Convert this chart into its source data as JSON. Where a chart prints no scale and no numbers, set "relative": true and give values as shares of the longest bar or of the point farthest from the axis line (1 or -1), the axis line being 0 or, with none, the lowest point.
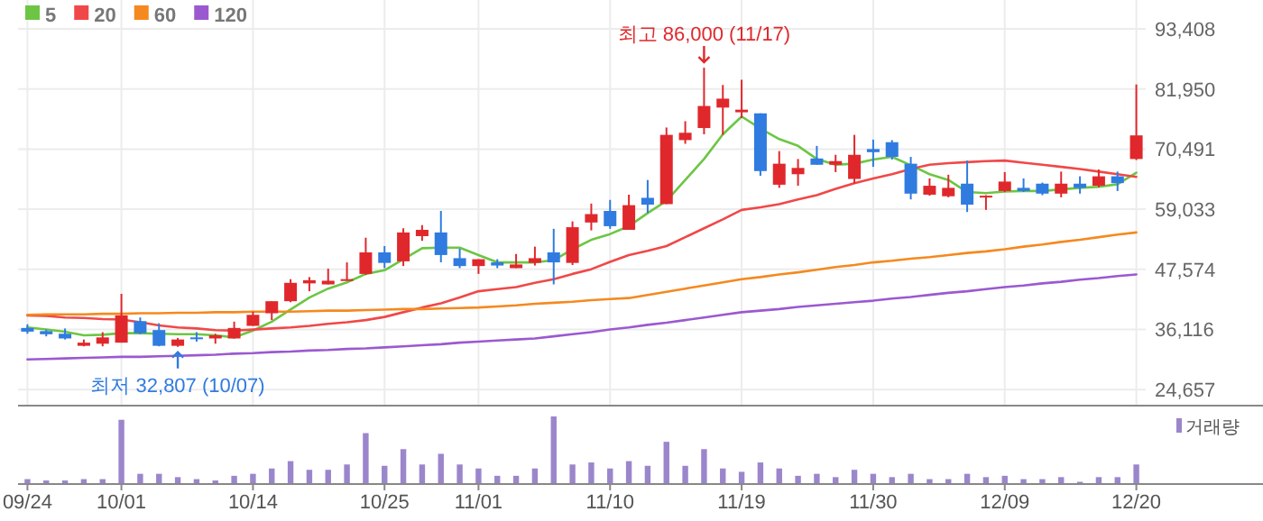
{
  "chart_data": [
    {
      "type": "candlestick",
      "categories": [
        null,
        null,
        null,
        null,
        null,
        null,
        null,
        null,
        null,
        null,
        null,
        null,
        null,
        null,
        null,
        null,
        null,
        null,
        null,
        null,
        null,
        null,
        null,
        null,
        null,
        null,
        null,
        null,
        null,
        null,
        null,
        null,
        null,
        null,
        null,
        null,
        null,
        null,
        null,
        null,
        null,
        null,
        null,
        null,
        null,
        null,
        null,
        null,
        null,
        null,
        null,
        null,
        null,
        null,
        null,
        null,
        null,
        null,
        null,
        null
      ],
      "ohlc": [
        [
          36400,
          37100,
          35300,
          35700
        ],
        [
          35800,
          36100,
          34800,
          35200
        ],
        [
          35300,
          36300,
          34200,
          34400
        ],
        [
          33000,
          34200,
          32900,
          33600
        ],
        [
          33400,
          35600,
          32900,
          34600
        ],
        [
          33600,
          42900,
          33600,
          38800
        ],
        [
          37700,
          38400,
          35200,
          35400
        ],
        [
          36000,
          37300,
          32900,
          33000
        ],
        [
          33000,
          34500,
          32807,
          34200
        ],
        [
          34600,
          35600,
          33800,
          34500
        ],
        [
          34400,
          35300,
          33400,
          35000
        ],
        [
          34400,
          37600,
          34400,
          36400
        ],
        [
          36800,
          39500,
          36800,
          38900
        ],
        [
          39200,
          41500,
          37900,
          41500
        ],
        [
          41500,
          45700,
          41300,
          45000
        ],
        [
          44900,
          46100,
          43400,
          45500
        ],
        [
          44700,
          47700,
          44700,
          45400
        ],
        [
          45400,
          48900,
          45400,
          45700
        ],
        [
          46700,
          53600,
          46500,
          50800
        ],
        [
          50800,
          52000,
          47800,
          48800
        ],
        [
          49100,
          55400,
          48200,
          54600
        ],
        [
          53900,
          56000,
          53000,
          55100
        ],
        [
          54600,
          58700,
          48900,
          50300
        ],
        [
          49700,
          51500,
          47800,
          48200
        ],
        [
          48200,
          49500,
          46700,
          49500
        ],
        [
          48900,
          49500,
          47800,
          48300
        ],
        [
          47800,
          50500,
          47800,
          48500
        ],
        [
          48800,
          51900,
          48300,
          49700
        ],
        [
          50800,
          55300,
          44700,
          48900
        ],
        [
          48800,
          56700,
          48400,
          55600
        ],
        [
          56500,
          60100,
          55000,
          58100
        ],
        [
          58700,
          60800,
          55300,
          55800
        ],
        [
          55100,
          61800,
          55100,
          59800
        ],
        [
          61200,
          64600,
          58300,
          59900
        ],
        [
          60000,
          74600,
          60000,
          73200
        ],
        [
          72200,
          75800,
          71500,
          73600
        ],
        [
          74500,
          86000,
          73300,
          78700
        ],
        [
          78400,
          82700,
          73200,
          80100
        ],
        [
          77500,
          83700,
          76400,
          78000
        ],
        [
          77300,
          77300,
          65400,
          66300
        ],
        [
          63700,
          70100,
          63100,
          67700
        ],
        [
          65700,
          68600,
          63500,
          66900
        ],
        [
          68700,
          71100,
          67500,
          67500
        ],
        [
          67500,
          69400,
          66100,
          68200
        ],
        [
          64800,
          73200,
          63900,
          69400
        ],
        [
          70500,
          72300,
          67100,
          69900
        ],
        [
          71800,
          72200,
          68500,
          69000
        ],
        [
          67700,
          69000,
          60900,
          62000
        ],
        [
          61800,
          64900,
          61600,
          63500
        ],
        [
          61500,
          65600,
          61300,
          63100
        ],
        [
          63900,
          68300,
          58500,
          59900
        ],
        [
          61400,
          61700,
          58900,
          61600
        ],
        [
          62500,
          66100,
          62300,
          64300
        ],
        [
          63100,
          64900,
          62300,
          62500
        ],
        [
          63900,
          64100,
          61700,
          62000
        ],
        [
          62000,
          66200,
          61300,
          63900
        ],
        [
          63900,
          65300,
          62000,
          63100
        ],
        [
          63500,
          66600,
          63200,
          65300
        ],
        [
          65300,
          66200,
          62500,
          64000
        ],
        [
          68600,
          82800,
          68400,
          73100
        ]
      ],
      "series": [
        {
          "name": "5",
          "type": "line",
          "color": "#6cc644",
          "values": [
            36500,
            36100,
            35700,
            35000,
            35100,
            35400,
            35400,
            35300,
            35200,
            35200,
            35000,
            34600,
            35900,
            37600,
            39900,
            42200,
            43900,
            45100,
            46700,
            47400,
            49500,
            51600,
            51700,
            51700,
            50300,
            48900,
            48900,
            48900,
            49300,
            51400,
            53200,
            54300,
            55800,
            58300,
            60600,
            64600,
            68600,
            73300,
            76700,
            74400,
            72400,
            71100,
            68600,
            67500,
            67700,
            68500,
            69000,
            67400,
            65700,
            64600,
            62300,
            62100,
            62400,
            62500,
            62500,
            62800,
            63100,
            63300,
            63800,
            66000
          ]
        },
        {
          "name": "20",
          "type": "line",
          "color": "#f04848",
          "values": [
            38800,
            38700,
            38400,
            38300,
            38100,
            38000,
            37500,
            36900,
            36500,
            36300,
            36000,
            35900,
            36100,
            36300,
            36500,
            36800,
            37200,
            37500,
            37900,
            38500,
            39400,
            40300,
            41100,
            42200,
            43400,
            43800,
            44200,
            45000,
            45700,
            46700,
            47600,
            49000,
            50300,
            51100,
            52000,
            53700,
            55400,
            57100,
            58900,
            59400,
            60000,
            60900,
            61700,
            62900,
            64000,
            64900,
            65700,
            66700,
            67500,
            67800,
            68000,
            68200,
            68300,
            67900,
            67500,
            67100,
            66700,
            66200,
            65700,
            65200
          ]
        },
        {
          "name": "60",
          "type": "line",
          "color": "#f5891f",
          "values": [
            38900,
            39000,
            39000,
            39000,
            39100,
            39100,
            39200,
            39200,
            39300,
            39300,
            39400,
            39400,
            39500,
            39500,
            39500,
            39600,
            39700,
            39700,
            39800,
            39900,
            40000,
            40000,
            40100,
            40200,
            40300,
            40500,
            40700,
            41000,
            41200,
            41400,
            41700,
            41900,
            42100,
            42700,
            43300,
            43900,
            44500,
            45100,
            45700,
            46100,
            46600,
            47000,
            47500,
            48000,
            48400,
            48900,
            49200,
            49600,
            49900,
            50300,
            50700,
            51000,
            51400,
            51900,
            52300,
            52800,
            53200,
            53700,
            54200,
            54600
          ]
        },
        {
          "name": "120",
          "type": "line",
          "color": "#9b59d0",
          "values": [
            30400,
            30500,
            30600,
            30700,
            30800,
            30900,
            30900,
            31000,
            31100,
            31200,
            31300,
            31500,
            31600,
            31800,
            31900,
            32100,
            32200,
            32400,
            32500,
            32700,
            32900,
            33100,
            33300,
            33600,
            33800,
            34000,
            34200,
            34400,
            34800,
            35200,
            35600,
            36100,
            36500,
            37000,
            37400,
            37900,
            38400,
            38900,
            39400,
            39700,
            40000,
            40400,
            40700,
            41000,
            41300,
            41600,
            42000,
            42300,
            42700,
            43100,
            43400,
            43800,
            44200,
            44500,
            44900,
            45200,
            45600,
            45900,
            46300,
            46600
          ]
        }
      ],
      "ylim": [
        21600,
        98900
      ],
      "yticks": [
        {
          "value": 24657,
          "label": "24,657"
        },
        {
          "value": 36116,
          "label": "36,116"
        },
        {
          "value": 47574,
          "label": "47,574"
        },
        {
          "value": 59033,
          "label": "59,033"
        },
        {
          "value": 70491,
          "label": "70,491"
        },
        {
          "value": 81950,
          "label": "81,950"
        },
        {
          "value": 93408,
          "label": "93,408"
        }
      ],
      "grid": true,
      "legend": "top left",
      "tick_labels": "y",
      "annotations": [
        "최고 86,000 (11/17)",
        "최저 32,807 (10/07)"
      ]
    },
    {
      "type": "bar",
      "relative": true,
      "categories": [
        "09/24",
        null,
        null,
        null,
        null,
        "10/01",
        null,
        null,
        null,
        null,
        null,
        null,
        "10/14",
        null,
        null,
        null,
        null,
        null,
        null,
        "10/25",
        null,
        null,
        null,
        null,
        "11/01",
        null,
        null,
        null,
        null,
        null,
        null,
        "11/10",
        null,
        null,
        null,
        null,
        null,
        null,
        "11/19",
        null,
        null,
        null,
        null,
        null,
        null,
        "11/30",
        null,
        null,
        null,
        null,
        null,
        null,
        "12/09",
        null,
        null,
        null,
        null,
        null,
        null,
        "12/20"
      ],
      "series": [
        {
          "name": "거래량",
          "color": "#9b86cc",
          "values": [
            0.06,
            0.04,
            0.04,
            0.06,
            0.06,
            0.95,
            0.14,
            0.14,
            0.09,
            0.06,
            0.04,
            0.11,
            0.14,
            0.22,
            0.33,
            0.2,
            0.2,
            0.28,
            0.75,
            0.26,
            0.51,
            0.28,
            0.44,
            0.28,
            0.22,
            0.11,
            0.11,
            0.22,
            1,
            0.28,
            0.31,
            0.22,
            0.33,
            0.26,
            0.62,
            0.26,
            0.51,
            0.22,
            0.17,
            0.31,
            0.22,
            0.11,
            0.14,
            0.09,
            0.2,
            0.14,
            0.09,
            0.14,
            0.06,
            0.06,
            0.14,
            0.09,
            0.11,
            0.06,
            0.06,
            0.09,
            0.02,
            0.09,
            0.09,
            0.28
          ]
        }
      ],
      "legend": "top right",
      "tick_labels": "x"
    }
  ]
}
